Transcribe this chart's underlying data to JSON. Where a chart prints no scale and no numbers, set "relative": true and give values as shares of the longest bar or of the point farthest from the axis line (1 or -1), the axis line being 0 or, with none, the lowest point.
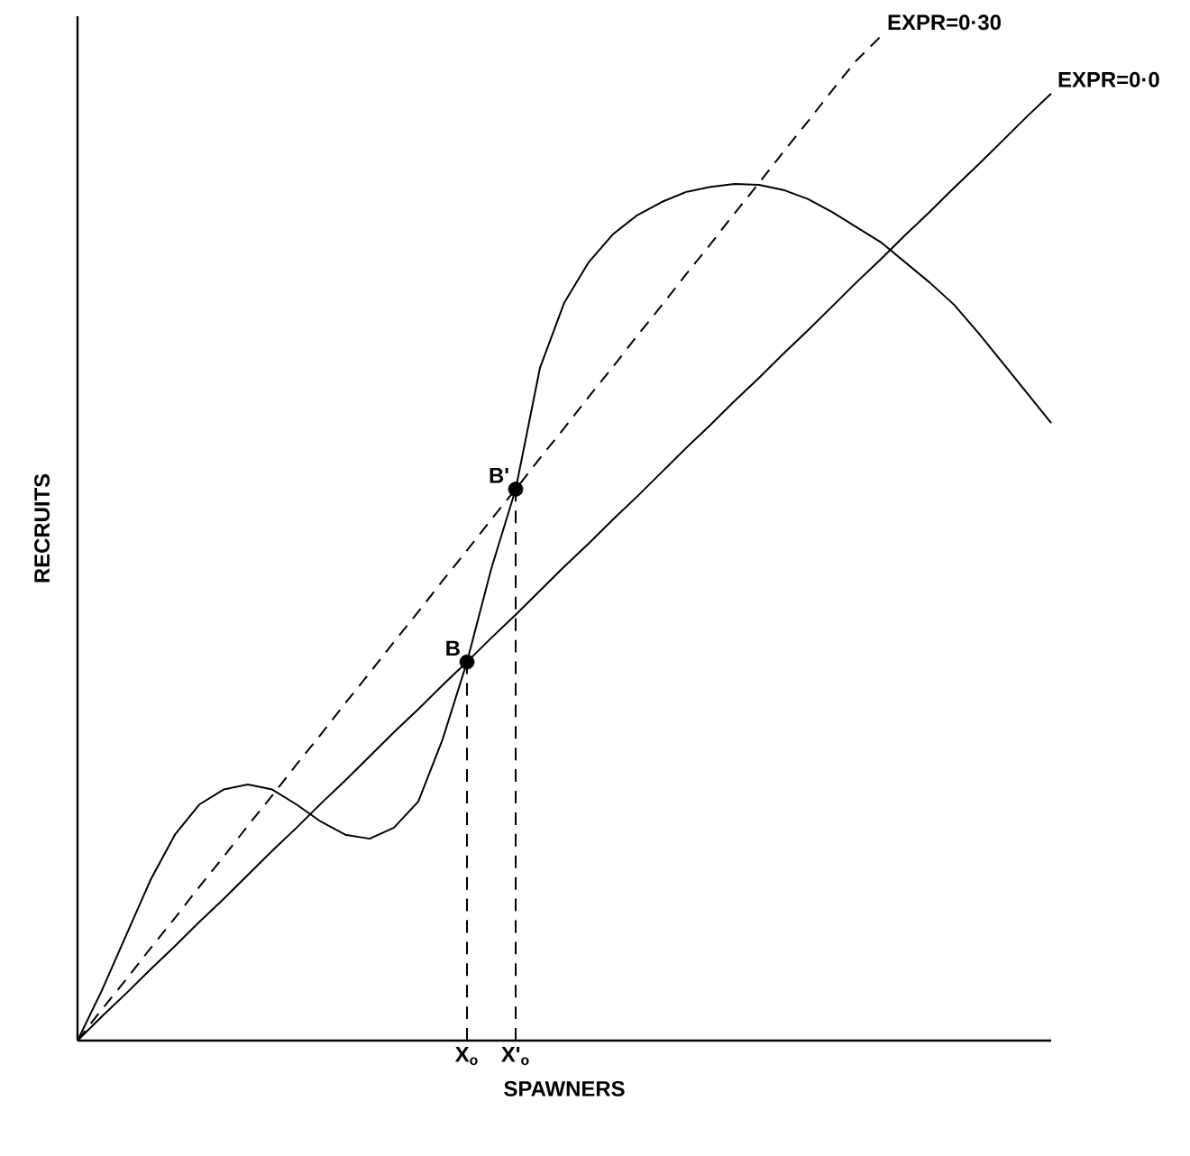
{
  "chart_data": {
    "type": "line",
    "relative": true,
    "xlabel": "SPAWNERS",
    "ylabel": "RECRUITS",
    "categories": [
      null,
      null,
      null,
      null,
      null,
      null,
      null,
      null,
      null,
      null,
      null,
      null,
      null,
      null,
      null,
      null,
      "X$_{o}$",
      null,
      "X'$_{o}$",
      null,
      null,
      null,
      null,
      null,
      null,
      null,
      null,
      null,
      null,
      null,
      null,
      null,
      null,
      null,
      null,
      null,
      null,
      null,
      null,
      null,
      null
    ],
    "series": [
      {
        "type": "line",
        "color": "#000000",
        "line_style": "solid",
        "values": [
          0,
          0.05,
          0.105,
          0.16,
          0.205,
          0.235,
          0.25,
          0.255,
          0.25,
          0.235,
          0.218,
          0.205,
          0.201,
          0.212,
          0.238,
          0.3,
          0.377,
          0.47,
          0.549,
          0.67,
          0.735,
          0.775,
          0.803,
          0.822,
          0.835,
          0.845,
          0.85,
          0.853,
          0.852,
          0.847,
          0.838,
          0.825,
          0.81,
          0.795,
          0.775,
          0.755,
          0.733,
          0.705,
          0.675,
          0.645,
          0.615
        ]
      },
      {
        "type": "line",
        "name": "EXPR=0·30",
        "color": "#000000",
        "line_style": "dashed",
        "values": [
          0,
          0.031,
          0.061,
          0.092,
          0.122,
          0.153,
          0.183,
          0.214,
          0.244,
          0.275,
          0.305,
          0.336,
          0.366,
          0.397,
          0.427,
          0.458,
          0.488,
          0.519,
          0.549,
          0.58,
          0.61,
          0.641,
          0.671,
          0.702,
          0.732,
          0.763,
          0.793,
          0.824,
          0.854,
          0.885,
          0.915,
          0.946,
          0.976,
          1,
          null,
          null,
          null,
          null,
          null,
          null,
          null
        ]
      },
      {
        "type": "line",
        "name": "EXPR=0·0",
        "color": "#000000",
        "line_style": "solid",
        "values": [
          0,
          0.024,
          0.047,
          0.071,
          0.094,
          0.118,
          0.141,
          0.165,
          0.189,
          0.212,
          0.236,
          0.259,
          0.283,
          0.307,
          0.33,
          0.354,
          0.377,
          0.401,
          0.424,
          0.448,
          0.472,
          0.495,
          0.519,
          0.542,
          0.566,
          0.59,
          0.613,
          0.637,
          0.66,
          0.684,
          0.707,
          0.731,
          0.755,
          0.778,
          0.802,
          0.825,
          0.849,
          0.872,
          0.896,
          0.92,
          0.943
        ]
      },
      {
        "type": "lollipop",
        "color": "#000000",
        "line_style": "dashed",
        "marker": "circle",
        "values": [
          null,
          null,
          null,
          null,
          null,
          null,
          null,
          null,
          null,
          null,
          null,
          null,
          null,
          null,
          null,
          null,
          0.377,
          null,
          0.549,
          null,
          null,
          null,
          null,
          null,
          null,
          null,
          null,
          null,
          null,
          null,
          null,
          null,
          null,
          null,
          null,
          null,
          null,
          null,
          null,
          null,
          null
        ]
      }
    ],
    "annotations": [
      {
        "text": "B",
        "x": "X$_{o}$",
        "y": 0.377
      },
      {
        "text": "B'",
        "x": "X'$_{o}$",
        "y": 0.549
      }
    ]
  }
}
